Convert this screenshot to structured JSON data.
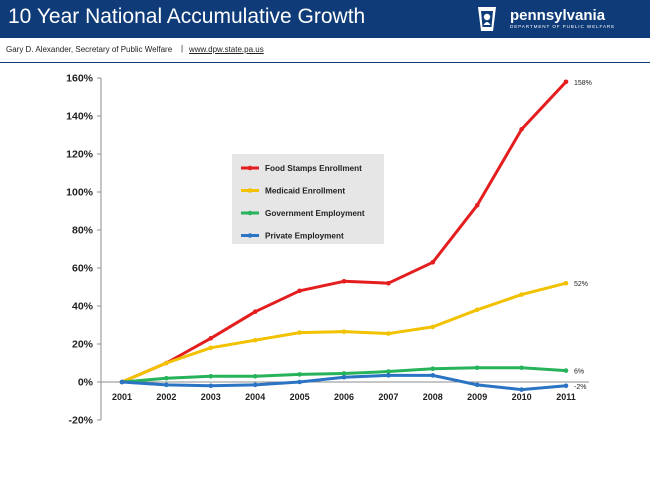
{
  "header": {
    "title": "10 Year National Accumulative Growth",
    "logo_brand": "pennsylvania",
    "logo_dept": "DEPARTMENT OF PUBLIC WELFARE"
  },
  "subheader": {
    "name": "Gary D. Alexander,  Secretary of Public Welfare",
    "separator": "|",
    "url": "www.dpw.state.pa.us"
  },
  "colors": {
    "header_bg": "#0f3c79",
    "food_stamps": "#e41e1e",
    "medicaid": "#f2c100",
    "government": "#27b35a",
    "private": "#2b74c4"
  },
  "chart_data": {
    "type": "line",
    "title": "",
    "xlabel": "",
    "ylabel": "",
    "x": [
      "2001",
      "2002",
      "2003",
      "2004",
      "2005",
      "2006",
      "2007",
      "2008",
      "2009",
      "2010",
      "2011"
    ],
    "ylim": [
      -20,
      160
    ],
    "yticks": [
      160,
      140,
      120,
      100,
      80,
      60,
      40,
      20,
      0,
      -20
    ],
    "ytick_labels": [
      "160%",
      "140%",
      "120%",
      "100%",
      "80%",
      "60%",
      "40%",
      "20%",
      "0%",
      "-20%"
    ],
    "grid": false,
    "legend_position": "upper-left inside plot",
    "series": [
      {
        "name": "Food Stamps Enrollment",
        "color": "#e41e1e",
        "values": [
          0,
          10,
          23,
          37,
          48,
          53,
          52,
          63,
          93,
          133,
          158
        ],
        "end_label": "158%"
      },
      {
        "name": "Medicaid Enrollment",
        "color": "#f2c100",
        "values": [
          0,
          10,
          18,
          22,
          26,
          26.5,
          25.5,
          29,
          38,
          46,
          52
        ],
        "end_label": "52%"
      },
      {
        "name": "Government Employment",
        "color": "#27b35a",
        "values": [
          0,
          2,
          3,
          3,
          4,
          4.5,
          5.5,
          7,
          7.5,
          7.5,
          6
        ],
        "end_label": "6%"
      },
      {
        "name": "Private Employment",
        "color": "#2b74c4",
        "values": [
          0,
          -1.5,
          -2,
          -1.5,
          0,
          2.5,
          3.5,
          3.5,
          -1.5,
          -4,
          -2
        ],
        "end_label": "-2%"
      }
    ]
  }
}
